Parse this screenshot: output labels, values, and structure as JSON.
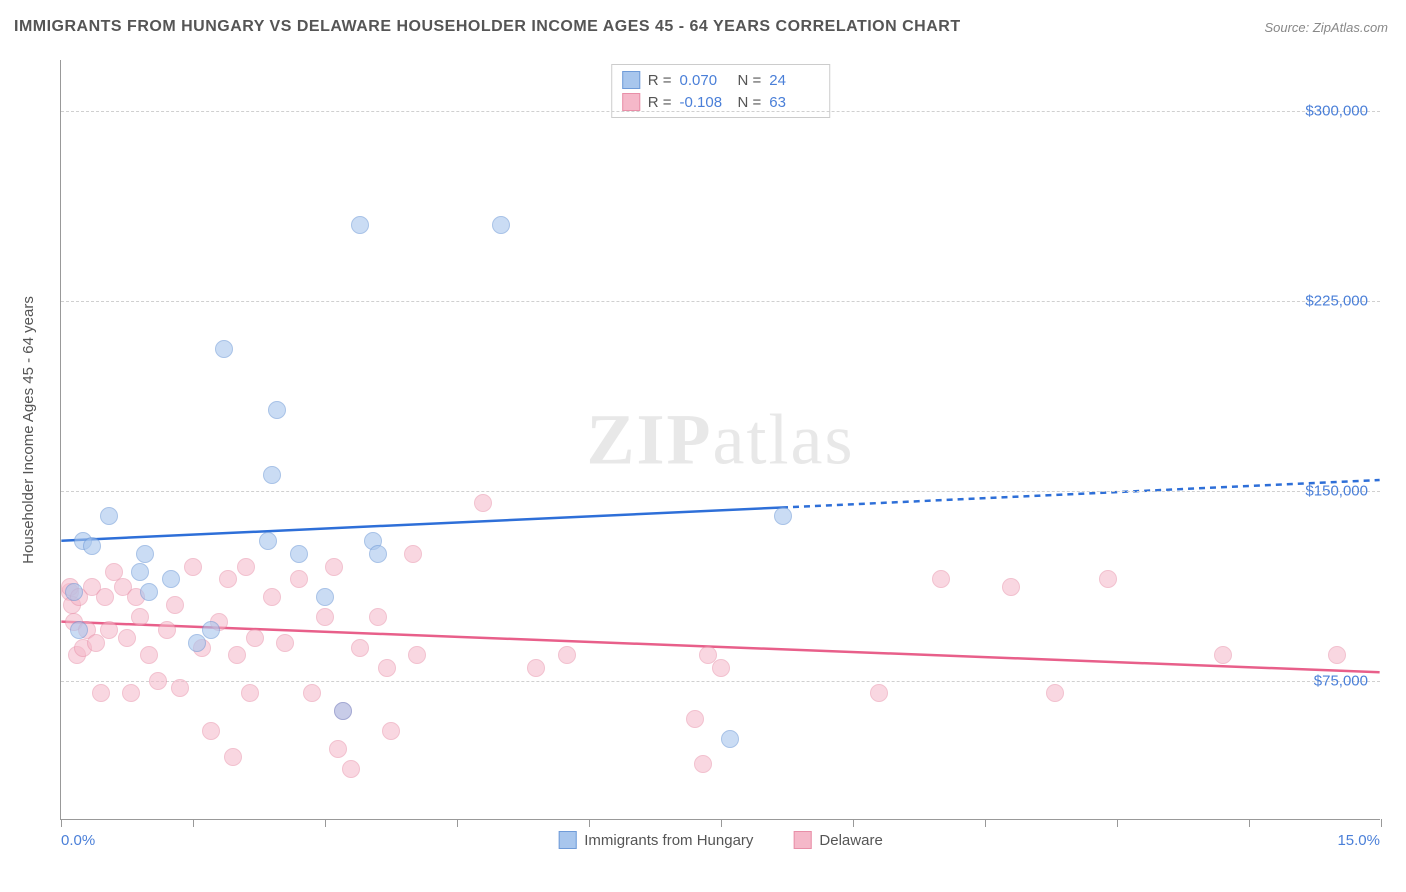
{
  "title": "IMMIGRANTS FROM HUNGARY VS DELAWARE HOUSEHOLDER INCOME AGES 45 - 64 YEARS CORRELATION CHART",
  "source": "Source: ZipAtlas.com",
  "watermark": {
    "part1": "ZIP",
    "part2": "atlas"
  },
  "ylabel": "Householder Income Ages 45 - 64 years",
  "chart": {
    "type": "scatter",
    "xlim": [
      0,
      15
    ],
    "ylim": [
      20000,
      320000
    ],
    "x_display_min": "0.0%",
    "x_display_max": "15.0%",
    "y_ticks": [
      75000,
      150000,
      225000,
      300000
    ],
    "y_tick_labels": [
      "$75,000",
      "$150,000",
      "$225,000",
      "$300,000"
    ],
    "x_tick_positions": [
      0,
      1.5,
      3.0,
      4.5,
      6.0,
      7.5,
      9.0,
      10.5,
      12.0,
      13.5,
      15.0
    ],
    "grid_color": "#d0d0d0",
    "background_color": "#ffffff",
    "marker_radius": 9,
    "series": [
      {
        "name": "Immigrants from Hungary",
        "fill_color": "#a8c6ed",
        "fill_opacity": 0.6,
        "stroke_color": "#6f9bd8",
        "trend_color": "#2e6fd8",
        "trend_width": 2.5,
        "R": "0.070",
        "N": "24",
        "trend": {
          "x1": 0,
          "y1": 130000,
          "x2": 15,
          "y2": 154000,
          "solid_until_x": 8.2
        },
        "points": [
          [
            0.15,
            110000
          ],
          [
            0.2,
            95000
          ],
          [
            0.25,
            130000
          ],
          [
            0.35,
            128000
          ],
          [
            0.55,
            140000
          ],
          [
            0.9,
            118000
          ],
          [
            0.95,
            125000
          ],
          [
            1.0,
            110000
          ],
          [
            1.25,
            115000
          ],
          [
            1.55,
            90000
          ],
          [
            1.7,
            95000
          ],
          [
            1.85,
            206000
          ],
          [
            2.35,
            130000
          ],
          [
            2.4,
            156000
          ],
          [
            2.45,
            182000
          ],
          [
            2.7,
            125000
          ],
          [
            3.0,
            108000
          ],
          [
            3.2,
            63000
          ],
          [
            3.4,
            255000
          ],
          [
            3.55,
            130000
          ],
          [
            3.6,
            125000
          ],
          [
            5.0,
            255000
          ],
          [
            7.6,
            52000
          ],
          [
            8.2,
            140000
          ]
        ]
      },
      {
        "name": "Delaware",
        "fill_color": "#f5b8c9",
        "fill_opacity": 0.55,
        "stroke_color": "#e88fa8",
        "trend_color": "#e85f8a",
        "trend_width": 2.5,
        "R": "-0.108",
        "N": "63",
        "trend": {
          "x1": 0,
          "y1": 98000,
          "x2": 15,
          "y2": 78000,
          "solid_until_x": 15
        },
        "points": [
          [
            0.1,
            110000
          ],
          [
            0.1,
            112000
          ],
          [
            0.12,
            105000
          ],
          [
            0.15,
            98000
          ],
          [
            0.18,
            85000
          ],
          [
            0.2,
            108000
          ],
          [
            0.25,
            88000
          ],
          [
            0.3,
            95000
          ],
          [
            0.35,
            112000
          ],
          [
            0.4,
            90000
          ],
          [
            0.45,
            70000
          ],
          [
            0.5,
            108000
          ],
          [
            0.55,
            95000
          ],
          [
            0.6,
            118000
          ],
          [
            0.7,
            112000
          ],
          [
            0.75,
            92000
          ],
          [
            0.8,
            70000
          ],
          [
            0.85,
            108000
          ],
          [
            0.9,
            100000
          ],
          [
            1.0,
            85000
          ],
          [
            1.1,
            75000
          ],
          [
            1.2,
            95000
          ],
          [
            1.3,
            105000
          ],
          [
            1.35,
            72000
          ],
          [
            1.5,
            120000
          ],
          [
            1.6,
            88000
          ],
          [
            1.7,
            55000
          ],
          [
            1.8,
            98000
          ],
          [
            1.9,
            115000
          ],
          [
            1.95,
            45000
          ],
          [
            2.0,
            85000
          ],
          [
            2.1,
            120000
          ],
          [
            2.15,
            70000
          ],
          [
            2.2,
            92000
          ],
          [
            2.4,
            108000
          ],
          [
            2.55,
            90000
          ],
          [
            2.7,
            115000
          ],
          [
            2.85,
            70000
          ],
          [
            3.0,
            100000
          ],
          [
            3.1,
            120000
          ],
          [
            3.15,
            48000
          ],
          [
            3.2,
            63000
          ],
          [
            3.3,
            40000
          ],
          [
            3.4,
            88000
          ],
          [
            3.6,
            100000
          ],
          [
            3.7,
            80000
          ],
          [
            3.75,
            55000
          ],
          [
            4.0,
            125000
          ],
          [
            4.05,
            85000
          ],
          [
            4.8,
            145000
          ],
          [
            5.4,
            80000
          ],
          [
            5.75,
            85000
          ],
          [
            7.2,
            60000
          ],
          [
            7.3,
            42000
          ],
          [
            7.35,
            85000
          ],
          [
            7.5,
            80000
          ],
          [
            9.3,
            70000
          ],
          [
            10.0,
            115000
          ],
          [
            10.8,
            112000
          ],
          [
            11.3,
            70000
          ],
          [
            11.9,
            115000
          ],
          [
            13.2,
            85000
          ],
          [
            14.5,
            85000
          ]
        ]
      }
    ]
  }
}
